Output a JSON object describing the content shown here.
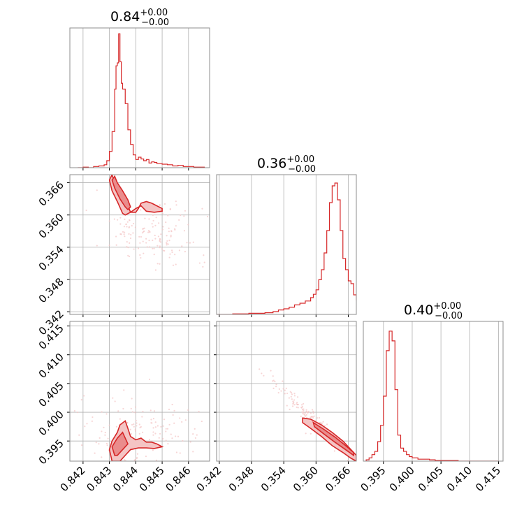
{
  "colors": {
    "accent": "#d62728",
    "fill_light": "#f4c4c4",
    "fill_dark": "#ea8c8c",
    "grid": "#b0b0b0",
    "frame": "#8c8c8c"
  },
  "panels": [
    {
      "id": "hist-0",
      "type": "histogram",
      "row": 0,
      "col": 0,
      "title": {
        "value": "0.84",
        "sup": "+0.00",
        "sub": "−0.00"
      },
      "xlim": [
        0.8415,
        0.8468
      ],
      "x_ticks": [
        0.842,
        0.843,
        0.844,
        0.845,
        0.846
      ],
      "bins": [
        0.8418,
        0.842,
        0.8422,
        0.8424,
        0.8426,
        0.8428,
        0.8429,
        0.843,
        0.8431,
        0.8432,
        0.84325,
        0.8433,
        0.84335,
        0.8434,
        0.84345,
        0.8435,
        0.8436,
        0.8437,
        0.8438,
        0.8439,
        0.844,
        0.8441,
        0.8442,
        0.8443,
        0.8444,
        0.8445,
        0.8446,
        0.8447,
        0.8448,
        0.845,
        0.8452,
        0.8454,
        0.8456,
        0.8458,
        0.846,
        0.8462,
        0.8464,
        0.8466
      ],
      "counts": [
        0,
        1,
        0,
        2,
        3,
        5,
        12,
        28,
        62,
        135,
        175,
        180,
        230,
        182,
        145,
        135,
        110,
        65,
        40,
        22,
        14,
        18,
        15,
        12,
        14,
        8,
        10,
        9,
        7,
        6,
        5,
        3,
        4,
        2,
        2,
        1,
        1,
        0
      ],
      "ymax": 240
    },
    {
      "id": "hist-1",
      "type": "histogram",
      "row": 1,
      "col": 1,
      "title": {
        "value": "0.36",
        "sup": "+0.00",
        "sub": "−0.00"
      },
      "xlim": [
        0.3415,
        0.3675
      ],
      "x_ticks": [
        0.342,
        0.348,
        0.354,
        0.36,
        0.366
      ],
      "bins": [
        0.3415,
        0.3445,
        0.3475,
        0.349,
        0.3505,
        0.352,
        0.353,
        0.354,
        0.355,
        0.356,
        0.357,
        0.358,
        0.359,
        0.3595,
        0.36,
        0.3605,
        0.361,
        0.3615,
        0.362,
        0.3625,
        0.363,
        0.3635,
        0.364,
        0.3645,
        0.365,
        0.3655,
        0.366,
        0.3665,
        0.367,
        0.3675
      ],
      "counts": [
        0,
        1,
        2,
        2,
        3,
        5,
        8,
        10,
        13,
        17,
        20,
        24,
        30,
        36,
        44,
        62,
        80,
        110,
        150,
        200,
        230,
        235,
        205,
        150,
        100,
        80,
        60,
        55,
        35,
        25
      ],
      "ymax": 250
    },
    {
      "id": "hist-2",
      "type": "histogram",
      "row": 2,
      "col": 2,
      "title": {
        "value": "0.40",
        "sup": "+0.00",
        "sub": "−0.00"
      },
      "xlim": [
        0.3915,
        0.4158
      ],
      "x_ticks": [
        0.395,
        0.4,
        0.405,
        0.41,
        0.415
      ],
      "bins": [
        0.392,
        0.3925,
        0.393,
        0.3935,
        0.394,
        0.3945,
        0.395,
        0.3955,
        0.396,
        0.3965,
        0.397,
        0.3975,
        0.398,
        0.3985,
        0.399,
        0.3995,
        0.4,
        0.401,
        0.402,
        0.403,
        0.404,
        0.405,
        0.406,
        0.408,
        0.41,
        0.412,
        0.415
      ],
      "counts": [
        2,
        5,
        10,
        15,
        30,
        55,
        100,
        170,
        200,
        185,
        110,
        40,
        20,
        15,
        10,
        7,
        5,
        3,
        3,
        2,
        1,
        1,
        1,
        0,
        0,
        0,
        0
      ],
      "ymax": 215
    },
    {
      "id": "scatter-1-0",
      "type": "contour",
      "row": 1,
      "col": 0,
      "xlim": [
        0.8415,
        0.8468
      ],
      "ylim": [
        0.3415,
        0.3675
      ],
      "x_ticks": [
        0.842,
        0.843,
        0.844,
        0.845,
        0.846
      ],
      "y_ticks": [
        0.342,
        0.348,
        0.354,
        0.36,
        0.366
      ],
      "point_cloud": {
        "center": [
          0.8446,
          0.3565
        ],
        "spread": [
          0.0011,
          0.0035
        ],
        "count": 160,
        "corr": -0.4
      },
      "contours": [
        {
          "level": "outer",
          "points": [
            [
              0.8431,
              0.3675
            ],
            [
              0.8432,
              0.366
            ],
            [
              0.8434,
              0.3645
            ],
            [
              0.8436,
              0.363
            ],
            [
              0.8438,
              0.3605
            ],
            [
              0.844,
              0.3605
            ],
            [
              0.8441,
              0.3612
            ],
            [
              0.8442,
              0.3622
            ],
            [
              0.8444,
              0.3625
            ],
            [
              0.8446,
              0.3622
            ],
            [
              0.8448,
              0.3617
            ],
            [
              0.845,
              0.3612
            ],
            [
              0.845,
              0.3607
            ],
            [
              0.8447,
              0.3605
            ],
            [
              0.8444,
              0.3607
            ],
            [
              0.8442,
              0.3617
            ],
            [
              0.844,
              0.3612
            ],
            [
              0.8438,
              0.3605
            ],
            [
              0.8436,
              0.36
            ],
            [
              0.8435,
              0.3603
            ],
            [
              0.8433,
              0.3625
            ],
            [
              0.8431,
              0.3645
            ],
            [
              0.843,
              0.3665
            ],
            [
              0.8431,
              0.3675
            ]
          ]
        },
        {
          "level": "inner",
          "points": [
            [
              0.8432,
              0.3672
            ],
            [
              0.8433,
              0.366
            ],
            [
              0.8435,
              0.3645
            ],
            [
              0.8437,
              0.3628
            ],
            [
              0.8438,
              0.3615
            ],
            [
              0.8437,
              0.361
            ],
            [
              0.8436,
              0.3615
            ],
            [
              0.8434,
              0.363
            ],
            [
              0.8432,
              0.365
            ],
            [
              0.8431,
              0.3665
            ],
            [
              0.8432,
              0.3672
            ]
          ]
        }
      ]
    },
    {
      "id": "scatter-2-0",
      "type": "contour",
      "row": 2,
      "col": 0,
      "xlim": [
        0.8415,
        0.8468
      ],
      "ylim": [
        0.3915,
        0.4158
      ],
      "x_ticks": [
        0.842,
        0.843,
        0.844,
        0.845,
        0.846
      ],
      "y_ticks": [
        0.395,
        0.4,
        0.405,
        0.41,
        0.415
      ],
      "point_cloud": {
        "center": [
          0.8442,
          0.3965
        ],
        "spread": [
          0.0012,
          0.003
        ],
        "count": 160,
        "corr": 0.0
      },
      "contours": [
        {
          "level": "outer",
          "points": [
            [
              0.8431,
              0.3915
            ],
            [
              0.843,
              0.3935
            ],
            [
              0.8431,
              0.395
            ],
            [
              0.8433,
              0.3965
            ],
            [
              0.8434,
              0.3978
            ],
            [
              0.8436,
              0.3985
            ],
            [
              0.8437,
              0.3972
            ],
            [
              0.8438,
              0.3958
            ],
            [
              0.844,
              0.3952
            ],
            [
              0.8442,
              0.3955
            ],
            [
              0.8444,
              0.3948
            ],
            [
              0.8446,
              0.3948
            ],
            [
              0.8448,
              0.3945
            ],
            [
              0.845,
              0.394
            ],
            [
              0.8447,
              0.3937
            ],
            [
              0.8444,
              0.3938
            ],
            [
              0.8441,
              0.3938
            ],
            [
              0.8438,
              0.3935
            ],
            [
              0.8436,
              0.3925
            ],
            [
              0.8434,
              0.3915
            ],
            [
              0.8431,
              0.3915
            ]
          ]
        },
        {
          "level": "inner",
          "points": [
            [
              0.8432,
              0.3925
            ],
            [
              0.8431,
              0.394
            ],
            [
              0.8433,
              0.3955
            ],
            [
              0.8435,
              0.3965
            ],
            [
              0.8436,
              0.3955
            ],
            [
              0.8437,
              0.3945
            ],
            [
              0.8435,
              0.3935
            ],
            [
              0.8433,
              0.3925
            ],
            [
              0.8432,
              0.3925
            ]
          ]
        }
      ]
    },
    {
      "id": "scatter-2-1",
      "type": "contour",
      "row": 2,
      "col": 1,
      "xlim": [
        0.3415,
        0.3675
      ],
      "ylim": [
        0.3915,
        0.4158
      ],
      "x_ticks": [
        0.342,
        0.348,
        0.354,
        0.36,
        0.366
      ],
      "y_ticks": [
        0.395,
        0.4,
        0.405,
        0.41,
        0.415
      ],
      "point_cloud": {
        "center": [
          0.359,
          0.399
        ],
        "spread": [
          0.004,
          0.0035
        ],
        "count": 150,
        "corr": -0.97
      },
      "contours": [
        {
          "level": "outer",
          "points": [
            [
              0.3575,
              0.399
            ],
            [
              0.359,
              0.3988
            ],
            [
              0.361,
              0.3978
            ],
            [
              0.363,
              0.3965
            ],
            [
              0.365,
              0.395
            ],
            [
              0.3665,
              0.3935
            ],
            [
              0.3675,
              0.3925
            ],
            [
              0.3675,
              0.3915
            ],
            [
              0.3665,
              0.392
            ],
            [
              0.365,
              0.393
            ],
            [
              0.363,
              0.3942
            ],
            [
              0.361,
              0.3958
            ],
            [
              0.359,
              0.3972
            ],
            [
              0.3575,
              0.3982
            ],
            [
              0.3575,
              0.399
            ]
          ]
        },
        {
          "level": "inner",
          "points": [
            [
              0.3595,
              0.3982
            ],
            [
              0.3615,
              0.397
            ],
            [
              0.3635,
              0.3957
            ],
            [
              0.3655,
              0.3942
            ],
            [
              0.367,
              0.393
            ],
            [
              0.367,
              0.3925
            ],
            [
              0.3655,
              0.3935
            ],
            [
              0.3635,
              0.3948
            ],
            [
              0.3615,
              0.3962
            ],
            [
              0.3597,
              0.3975
            ],
            [
              0.3595,
              0.3982
            ]
          ]
        }
      ]
    }
  ]
}
